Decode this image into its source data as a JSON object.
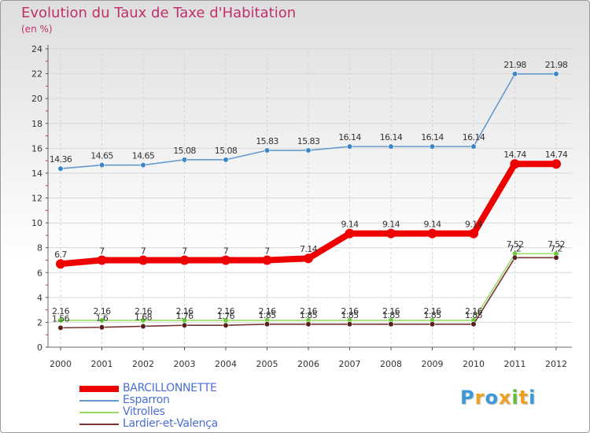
{
  "chart_data": {
    "type": "line",
    "title": "Evolution du Taux de Taxe d'Habitation",
    "subtitle": "(en %)",
    "xlabel": "",
    "ylabel": "",
    "x": [
      "2000",
      "2001",
      "2002",
      "2003",
      "2004",
      "2005",
      "2006",
      "2007",
      "2008",
      "2009",
      "2010",
      "2011",
      "2012"
    ],
    "ylim": [
      0,
      24
    ],
    "yticks": [
      0,
      2,
      4,
      6,
      8,
      10,
      12,
      14,
      16,
      18,
      20,
      22,
      24
    ],
    "grid": true,
    "legend_position": "bottom-left",
    "series": [
      {
        "name": "BARCILLONNETTE",
        "color": "#ee0000",
        "style": "thick",
        "values": [
          6.7,
          7,
          7,
          7,
          7,
          7,
          7.14,
          9.14,
          9.14,
          9.14,
          9.14,
          14.74,
          14.74
        ],
        "labels": [
          "6.7",
          "7",
          "7",
          "7",
          "7",
          "7",
          "7.14",
          "9.14",
          "9.14",
          "9.14",
          "9.14",
          "14.74",
          "14.74"
        ]
      },
      {
        "name": "Esparron",
        "color": "#6699cc",
        "marker_color": "#3a86c8",
        "style": "thin",
        "values": [
          14.36,
          14.65,
          14.65,
          15.08,
          15.08,
          15.83,
          15.83,
          16.14,
          16.14,
          16.14,
          16.14,
          21.98,
          21.98
        ],
        "labels": [
          "14.36",
          "14.65",
          "14.65",
          "15.08",
          "15.08",
          "15.83",
          "15.83",
          "16.14",
          "16.14",
          "16.14",
          "16.14",
          "21.98",
          "21.98"
        ]
      },
      {
        "name": "Vitrolles",
        "color": "#99dd66",
        "marker_color": "#66cc33",
        "style": "thin",
        "values": [
          2.16,
          2.16,
          2.16,
          2.16,
          2.16,
          2.16,
          2.16,
          2.16,
          2.16,
          2.16,
          2.16,
          7.52,
          7.52
        ],
        "labels": [
          "2.16",
          "2.16",
          "2.16",
          "2.16",
          "2.16",
          "2.16",
          "2.16",
          "2.16",
          "2.16",
          "2.16",
          "2.16",
          "7.52",
          "7.52"
        ]
      },
      {
        "name": "Lardier-et-Valença",
        "color": "#7a3333",
        "marker_color": "#5a1e1e",
        "style": "thin",
        "values": [
          1.56,
          1.6,
          1.68,
          1.76,
          1.76,
          1.85,
          1.85,
          1.85,
          1.85,
          1.85,
          1.85,
          7.2,
          7.2
        ],
        "labels": [
          "1.56",
          "1.6",
          "1.68",
          "1.76",
          "1.76",
          "1.85",
          "1.85",
          "1.85",
          "1.85",
          "1.85",
          "1.85",
          "7.2",
          "7.2"
        ]
      }
    ]
  },
  "logo": {
    "text": [
      "P",
      "r",
      "o",
      "x",
      "i",
      "t",
      "i"
    ],
    "colors": [
      "#3a9ad9",
      "#f0a020",
      "#3a9ad9",
      "#f0a020",
      "#66bb33",
      "#f0a020",
      "#3a9ad9"
    ]
  }
}
